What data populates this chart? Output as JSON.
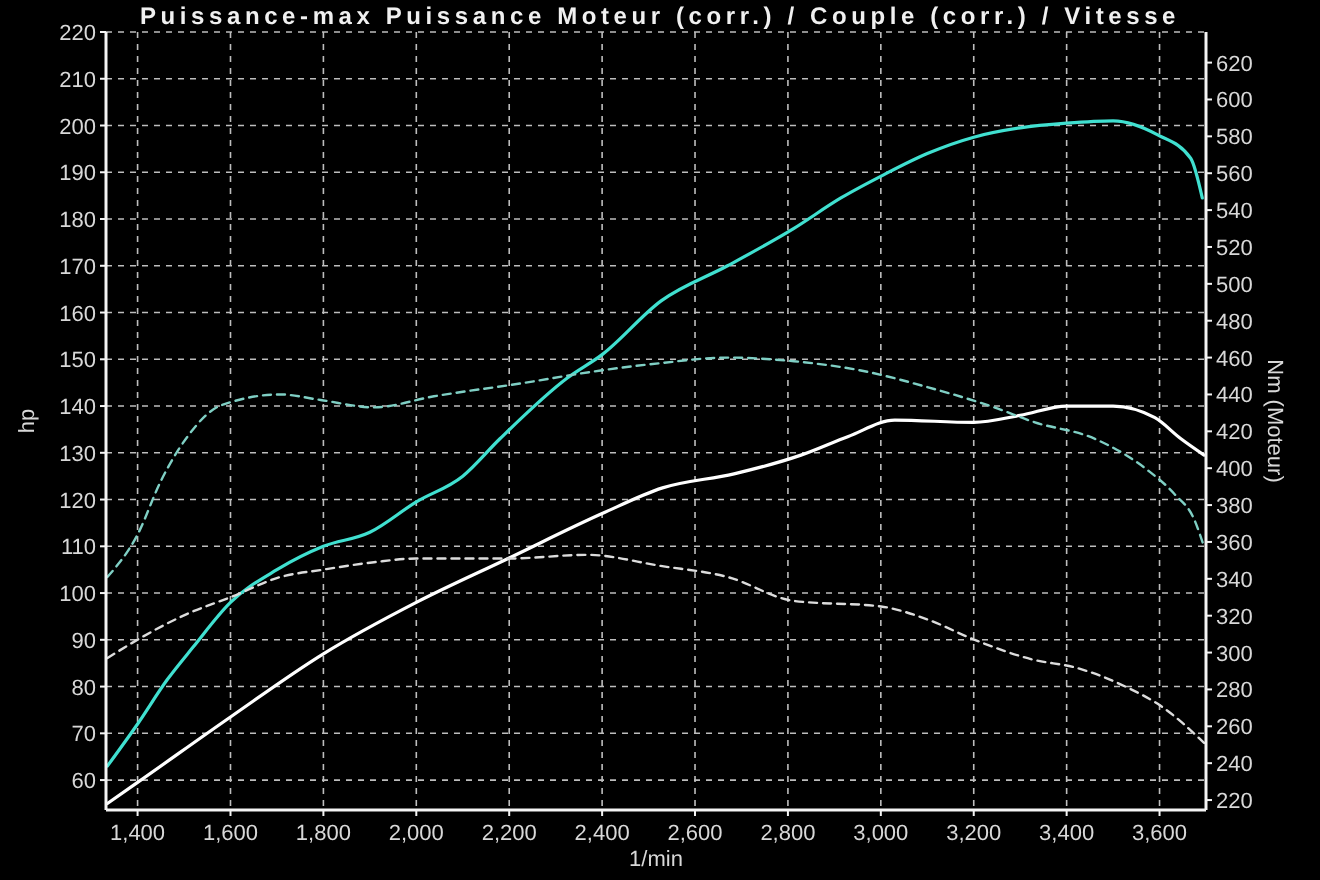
{
  "chart_data": {
    "type": "line",
    "title": "Puissance-max Puissance Moteur (corr.) / Couple (corr.) / Vitesse",
    "xlabel": "1/min",
    "ylabel": "hp",
    "y2label": "Nm (Moteur)",
    "xlim": [
      1332,
      3700
    ],
    "xticks": [
      {
        "value": 1400,
        "label": "1,400"
      },
      {
        "value": 1600,
        "label": "1,600"
      },
      {
        "value": 1800,
        "label": "1,800"
      },
      {
        "value": 2000,
        "label": "2,000"
      },
      {
        "value": 2200,
        "label": "2,200"
      },
      {
        "value": 2400,
        "label": "2,400"
      },
      {
        "value": 2600,
        "label": "2,600"
      },
      {
        "value": 2800,
        "label": "2,800"
      },
      {
        "value": 3000,
        "label": "3,000"
      },
      {
        "value": 3200,
        "label": "3,200"
      },
      {
        "value": 3400,
        "label": "3,400"
      },
      {
        "value": 3600,
        "label": "3,600"
      }
    ],
    "ylim": [
      53.6,
      220
    ],
    "yticks": [
      60,
      70,
      80,
      90,
      100,
      110,
      120,
      130,
      140,
      150,
      160,
      170,
      180,
      190,
      200,
      210,
      220
    ],
    "y2lim": [
      214.6,
      636.6
    ],
    "y2ticks": [
      220,
      240,
      260,
      280,
      300,
      320,
      340,
      360,
      380,
      400,
      420,
      440,
      460,
      480,
      500,
      520,
      540,
      560,
      580,
      600,
      620
    ],
    "grid": true,
    "series": [
      {
        "color": "#40e0d0",
        "x": [
          1335,
          1400,
          1464,
          1520,
          1600,
          1700,
          1800,
          1900,
          2000,
          2100,
          2180,
          2325,
          2400,
          2527,
          2670,
          2813,
          2914,
          3007,
          3100,
          3200,
          3300,
          3400,
          3500,
          3596,
          3667,
          3692
        ],
        "values": [
          63,
          72,
          81.5,
          88.5,
          98,
          105,
          110,
          113,
          119.5,
          125,
          133,
          146,
          151,
          162.5,
          170,
          178,
          184.5,
          189.5,
          194,
          197.5,
          199.5,
          200.5,
          201,
          198,
          193,
          184.5
        ]
      },
      {
        "color": "#ffffff",
        "x": [
          1335,
          1400,
          1600,
          1800,
          2000,
          2200,
          2400,
          2530,
          2684,
          2828,
          2930,
          3030,
          3200,
          3300,
          3400,
          3500,
          3590,
          3646,
          3696
        ],
        "values": [
          55,
          59.5,
          73.5,
          87,
          98,
          107.5,
          117,
          122.5,
          125.5,
          129.5,
          133.5,
          137,
          136.5,
          138,
          140,
          140,
          137.5,
          133,
          129.5
        ]
      },
      {
        "color": "#7fcfc4",
        "axis": "y2",
        "line_style": "dashed",
        "x": [
          1335,
          1400,
          1450,
          1507,
          1579,
          1708,
          1794,
          1909,
          2038,
          2225,
          2397,
          2526,
          2670,
          2813,
          2957,
          3100,
          3244,
          3330,
          3460,
          3574,
          3632,
          3675,
          3695
        ],
        "values": [
          341,
          364,
          393,
          417,
          434,
          440,
          437,
          433,
          439,
          446,
          453,
          457,
          460,
          458,
          453,
          444,
          433,
          425,
          416,
          399,
          386,
          372,
          358
        ]
      },
      {
        "color": "#dcdcdc",
        "axis": "y2",
        "line_style": "dashed",
        "x": [
          1335,
          1400,
          1507,
          1600,
          1708,
          1800,
          1909,
          2000,
          2200,
          2368,
          2526,
          2670,
          2813,
          3000,
          3100,
          3201,
          3330,
          3417,
          3531,
          3603,
          3696
        ],
        "values": [
          297,
          307,
          321,
          330,
          341,
          345,
          349,
          351,
          351,
          353,
          347,
          341,
          328,
          325,
          318,
          307,
          296,
          292,
          281,
          271,
          251
        ]
      }
    ]
  }
}
